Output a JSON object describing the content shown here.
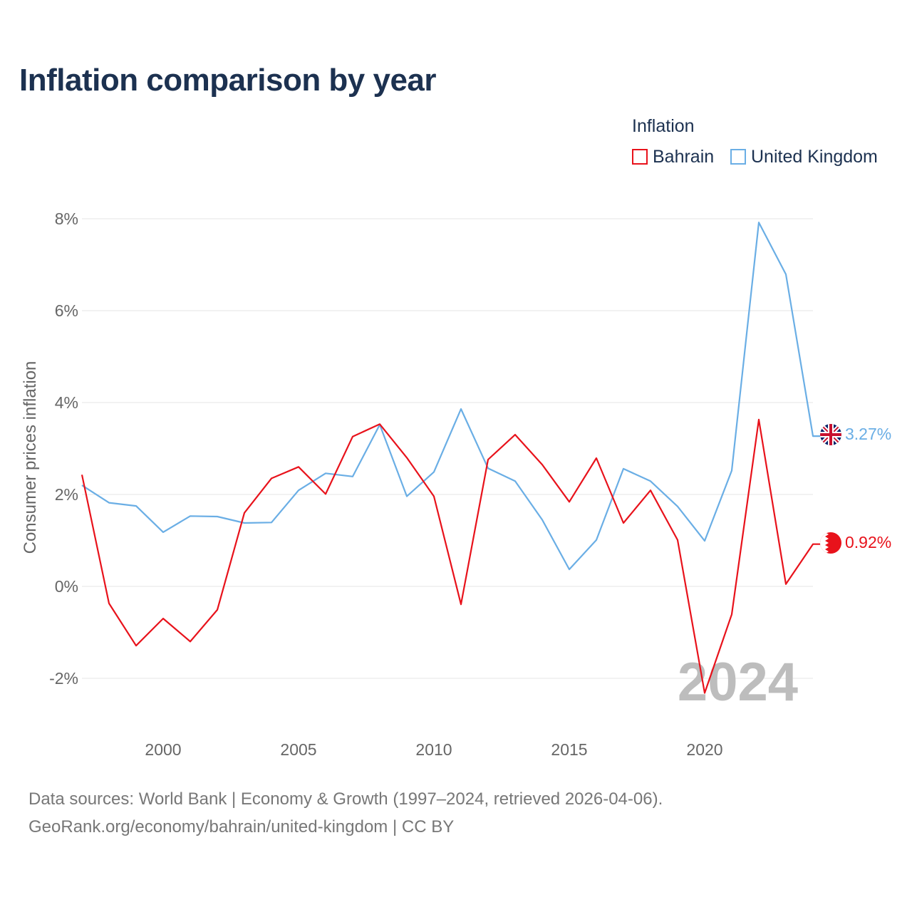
{
  "title": "Inflation comparison by year",
  "legend": {
    "title": "Inflation",
    "items": [
      {
        "label": "Bahrain",
        "color": "#e8121b"
      },
      {
        "label": "United Kingdom",
        "color": "#6aaee5"
      }
    ]
  },
  "chart_data": {
    "type": "line",
    "title": "Inflation comparison by year",
    "xlabel": "",
    "ylabel": "Consumer prices inflation",
    "ylim": [
      -2.8,
      8.4
    ],
    "xlim": [
      1997,
      2024
    ],
    "yticks": [
      -2,
      0,
      2,
      4,
      6,
      8
    ],
    "ytick_labels": [
      "-2%",
      "0%",
      "2%",
      "4%",
      "6%",
      "8%"
    ],
    "xticks": [
      2000,
      2005,
      2010,
      2015,
      2020
    ],
    "xtick_labels": [
      "2000",
      "2005",
      "2010",
      "2015",
      "2020"
    ],
    "grid": true,
    "watermark_year": "2024",
    "x": [
      1997,
      1998,
      1999,
      2000,
      2001,
      2002,
      2003,
      2004,
      2005,
      2006,
      2007,
      2008,
      2009,
      2010,
      2011,
      2012,
      2013,
      2014,
      2015,
      2016,
      2017,
      2018,
      2019,
      2020,
      2021,
      2022,
      2023,
      2024
    ],
    "series": [
      {
        "name": "Bahrain",
        "color": "#e8121b",
        "end_label": "0.92%",
        "values": [
          2.43,
          -0.37,
          -1.29,
          -0.7,
          -1.2,
          -0.51,
          1.6,
          2.35,
          2.6,
          2.01,
          3.26,
          3.53,
          2.8,
          1.96,
          -0.39,
          2.76,
          3.3,
          2.65,
          1.84,
          2.79,
          1.38,
          2.09,
          1.01,
          -2.32,
          -0.61,
          3.63,
          0.05,
          0.92
        ]
      },
      {
        "name": "United Kingdom",
        "color": "#6aaee5",
        "end_label": "3.27%",
        "values": [
          2.2,
          1.82,
          1.75,
          1.18,
          1.53,
          1.52,
          1.38,
          1.39,
          2.09,
          2.46,
          2.39,
          3.52,
          1.96,
          2.49,
          3.86,
          2.57,
          2.29,
          1.45,
          0.37,
          1.01,
          2.56,
          2.29,
          1.74,
          0.99,
          2.52,
          7.92,
          6.79,
          3.27
        ]
      }
    ]
  },
  "footer": {
    "line1": "Data sources: World Bank | Economy & Growth (1997–2024, retrieved 2026-04-06).",
    "line2": "GeoRank.org/economy/bahrain/united-kingdom | CC BY"
  }
}
